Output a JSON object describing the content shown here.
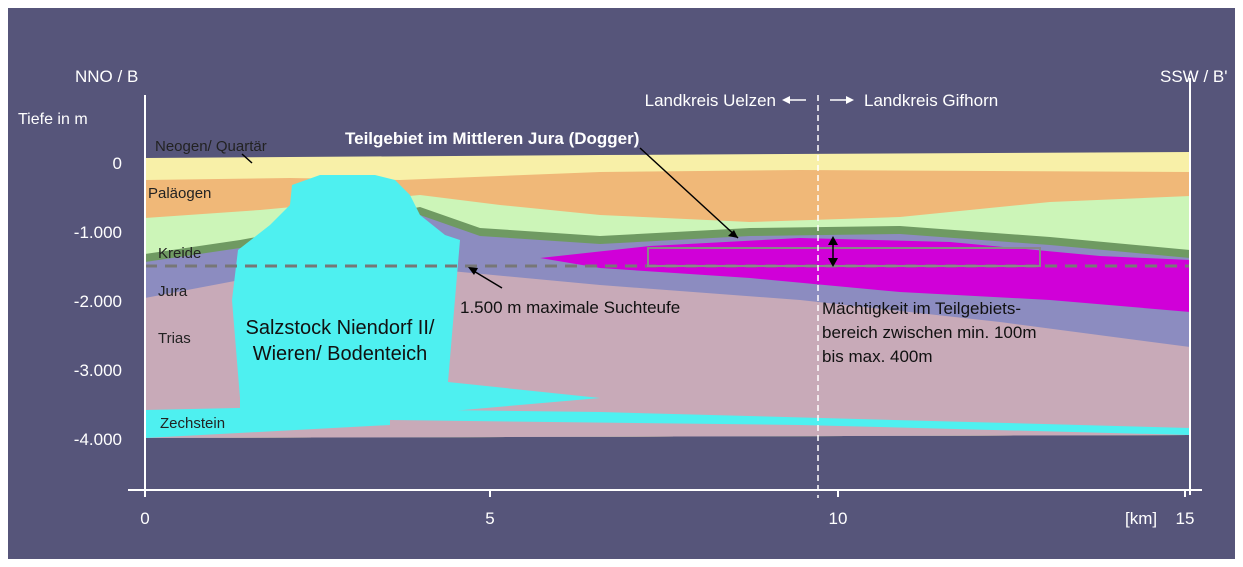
{
  "header": {
    "left_end": "NNO / B",
    "right_end": "SSW / B'",
    "depth_label": "Tiefe in m",
    "district_left": "Landkreis Uelzen",
    "district_right": "Landkreis Gifhorn",
    "subarea": "Teilgebiet im Mittleren Jura (Dogger)"
  },
  "depth_axis": {
    "ticks": [
      "0",
      "-1.000",
      "-2.000",
      "-3.000",
      "-4.000"
    ]
  },
  "distance_axis": {
    "ticks": [
      "0",
      "5",
      "10",
      "15"
    ],
    "unit": "[km]"
  },
  "layers": [
    "Neogen/ Quartär",
    "Paläogen",
    "Kreide",
    "Jura",
    "Trias",
    "Zechstein"
  ],
  "salt_dome": [
    "Salzstock Niendorf II/",
    "Wieren/ Bodenteich"
  ],
  "search_depth": "1.500 m maximale Suchteufe",
  "thickness_note": [
    "Mächtigkeit im Teilgebiets-",
    "bereich zwischen min. 100m",
    "bis max. 400m"
  ]
}
